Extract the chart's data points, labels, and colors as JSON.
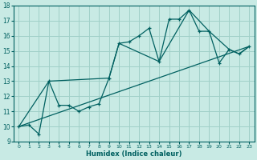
{
  "xlabel": "Humidex (Indice chaleur)",
  "background_color": "#c8eae4",
  "grid_color": "#a0d0c8",
  "line_color": "#006060",
  "xlim": [
    -0.5,
    23.5
  ],
  "ylim": [
    9,
    18
  ],
  "xticks": [
    0,
    1,
    2,
    3,
    4,
    5,
    6,
    7,
    8,
    9,
    10,
    11,
    12,
    13,
    14,
    15,
    16,
    17,
    18,
    19,
    20,
    21,
    22,
    23
  ],
  "yticks": [
    9,
    10,
    11,
    12,
    13,
    14,
    15,
    16,
    17,
    18
  ],
  "series_main": {
    "x": [
      0,
      1,
      2,
      3,
      4,
      5,
      6,
      7,
      8,
      9,
      10,
      11,
      12,
      13,
      14,
      15,
      16,
      17,
      18,
      19,
      20,
      21,
      22,
      23
    ],
    "y": [
      10.0,
      10.1,
      9.5,
      13.0,
      11.4,
      11.4,
      11.0,
      11.3,
      11.5,
      13.2,
      15.5,
      15.6,
      16.0,
      16.5,
      14.3,
      17.1,
      17.1,
      17.7,
      16.3,
      16.3,
      14.2,
      15.1,
      14.8,
      15.3
    ]
  },
  "series_lower": {
    "x": [
      0,
      23
    ],
    "y": [
      10.0,
      15.3
    ]
  },
  "series_upper": {
    "x": [
      0,
      3,
      9,
      10,
      14,
      17,
      19,
      21,
      22,
      23
    ],
    "y": [
      10.0,
      13.0,
      13.2,
      15.5,
      14.3,
      17.7,
      16.3,
      15.1,
      14.8,
      15.3
    ]
  }
}
